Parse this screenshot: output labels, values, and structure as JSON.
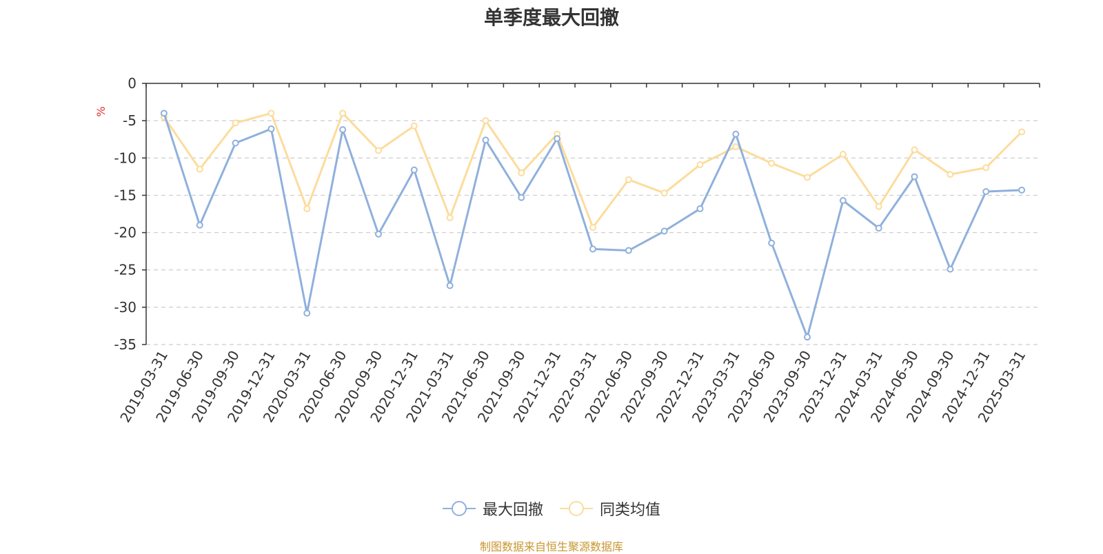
{
  "title": "单季度最大回撤",
  "source_note": "制图数据来自恒生聚源数据库",
  "colors": {
    "series1": "#8fb0dc",
    "series2": "#fcdc9c",
    "unit": "#e0312e",
    "grid": "#cccccc",
    "axis": "#333333"
  },
  "chart_data": {
    "type": "line",
    "title": "单季度最大回撤",
    "ylabel": "%",
    "ylim": [
      -35,
      0
    ],
    "yticks": [
      0,
      -5,
      -10,
      -15,
      -20,
      -25,
      -30,
      -35
    ],
    "grid": true,
    "legend_position": "bottom-center",
    "categories": [
      "2019-03-31",
      "2019-06-30",
      "2019-09-30",
      "2019-12-31",
      "2020-03-31",
      "2020-06-30",
      "2020-09-30",
      "2020-12-31",
      "2021-03-31",
      "2021-06-30",
      "2021-09-30",
      "2021-12-31",
      "2022-03-31",
      "2022-06-30",
      "2022-09-30",
      "2022-12-31",
      "2023-03-31",
      "2023-06-30",
      "2023-09-30",
      "2023-12-31",
      "2024-03-31",
      "2024-06-30",
      "2024-09-30",
      "2024-12-31",
      "2025-03-31"
    ],
    "series": [
      {
        "name": "最大回撤",
        "values": [
          -4.0,
          -19.0,
          -8.0,
          -6.1,
          -30.8,
          -6.2,
          -20.2,
          -11.6,
          -27.1,
          -7.6,
          -15.3,
          -7.4,
          -22.2,
          -22.4,
          -19.8,
          -16.8,
          -6.8,
          -21.4,
          -34.0,
          -15.7,
          -19.4,
          -12.5,
          -24.9,
          -14.5,
          -14.3
        ]
      },
      {
        "name": "同类均值",
        "values": [
          -4.5,
          -11.5,
          -5.3,
          -4.0,
          -16.8,
          -4.0,
          -9.0,
          -5.7,
          -18.0,
          -5.0,
          -12.0,
          -6.8,
          -19.3,
          -12.9,
          -14.7,
          -10.9,
          -8.5,
          -10.7,
          -12.6,
          -9.5,
          -16.5,
          -8.9,
          -12.2,
          -11.3,
          -6.5
        ]
      }
    ]
  }
}
